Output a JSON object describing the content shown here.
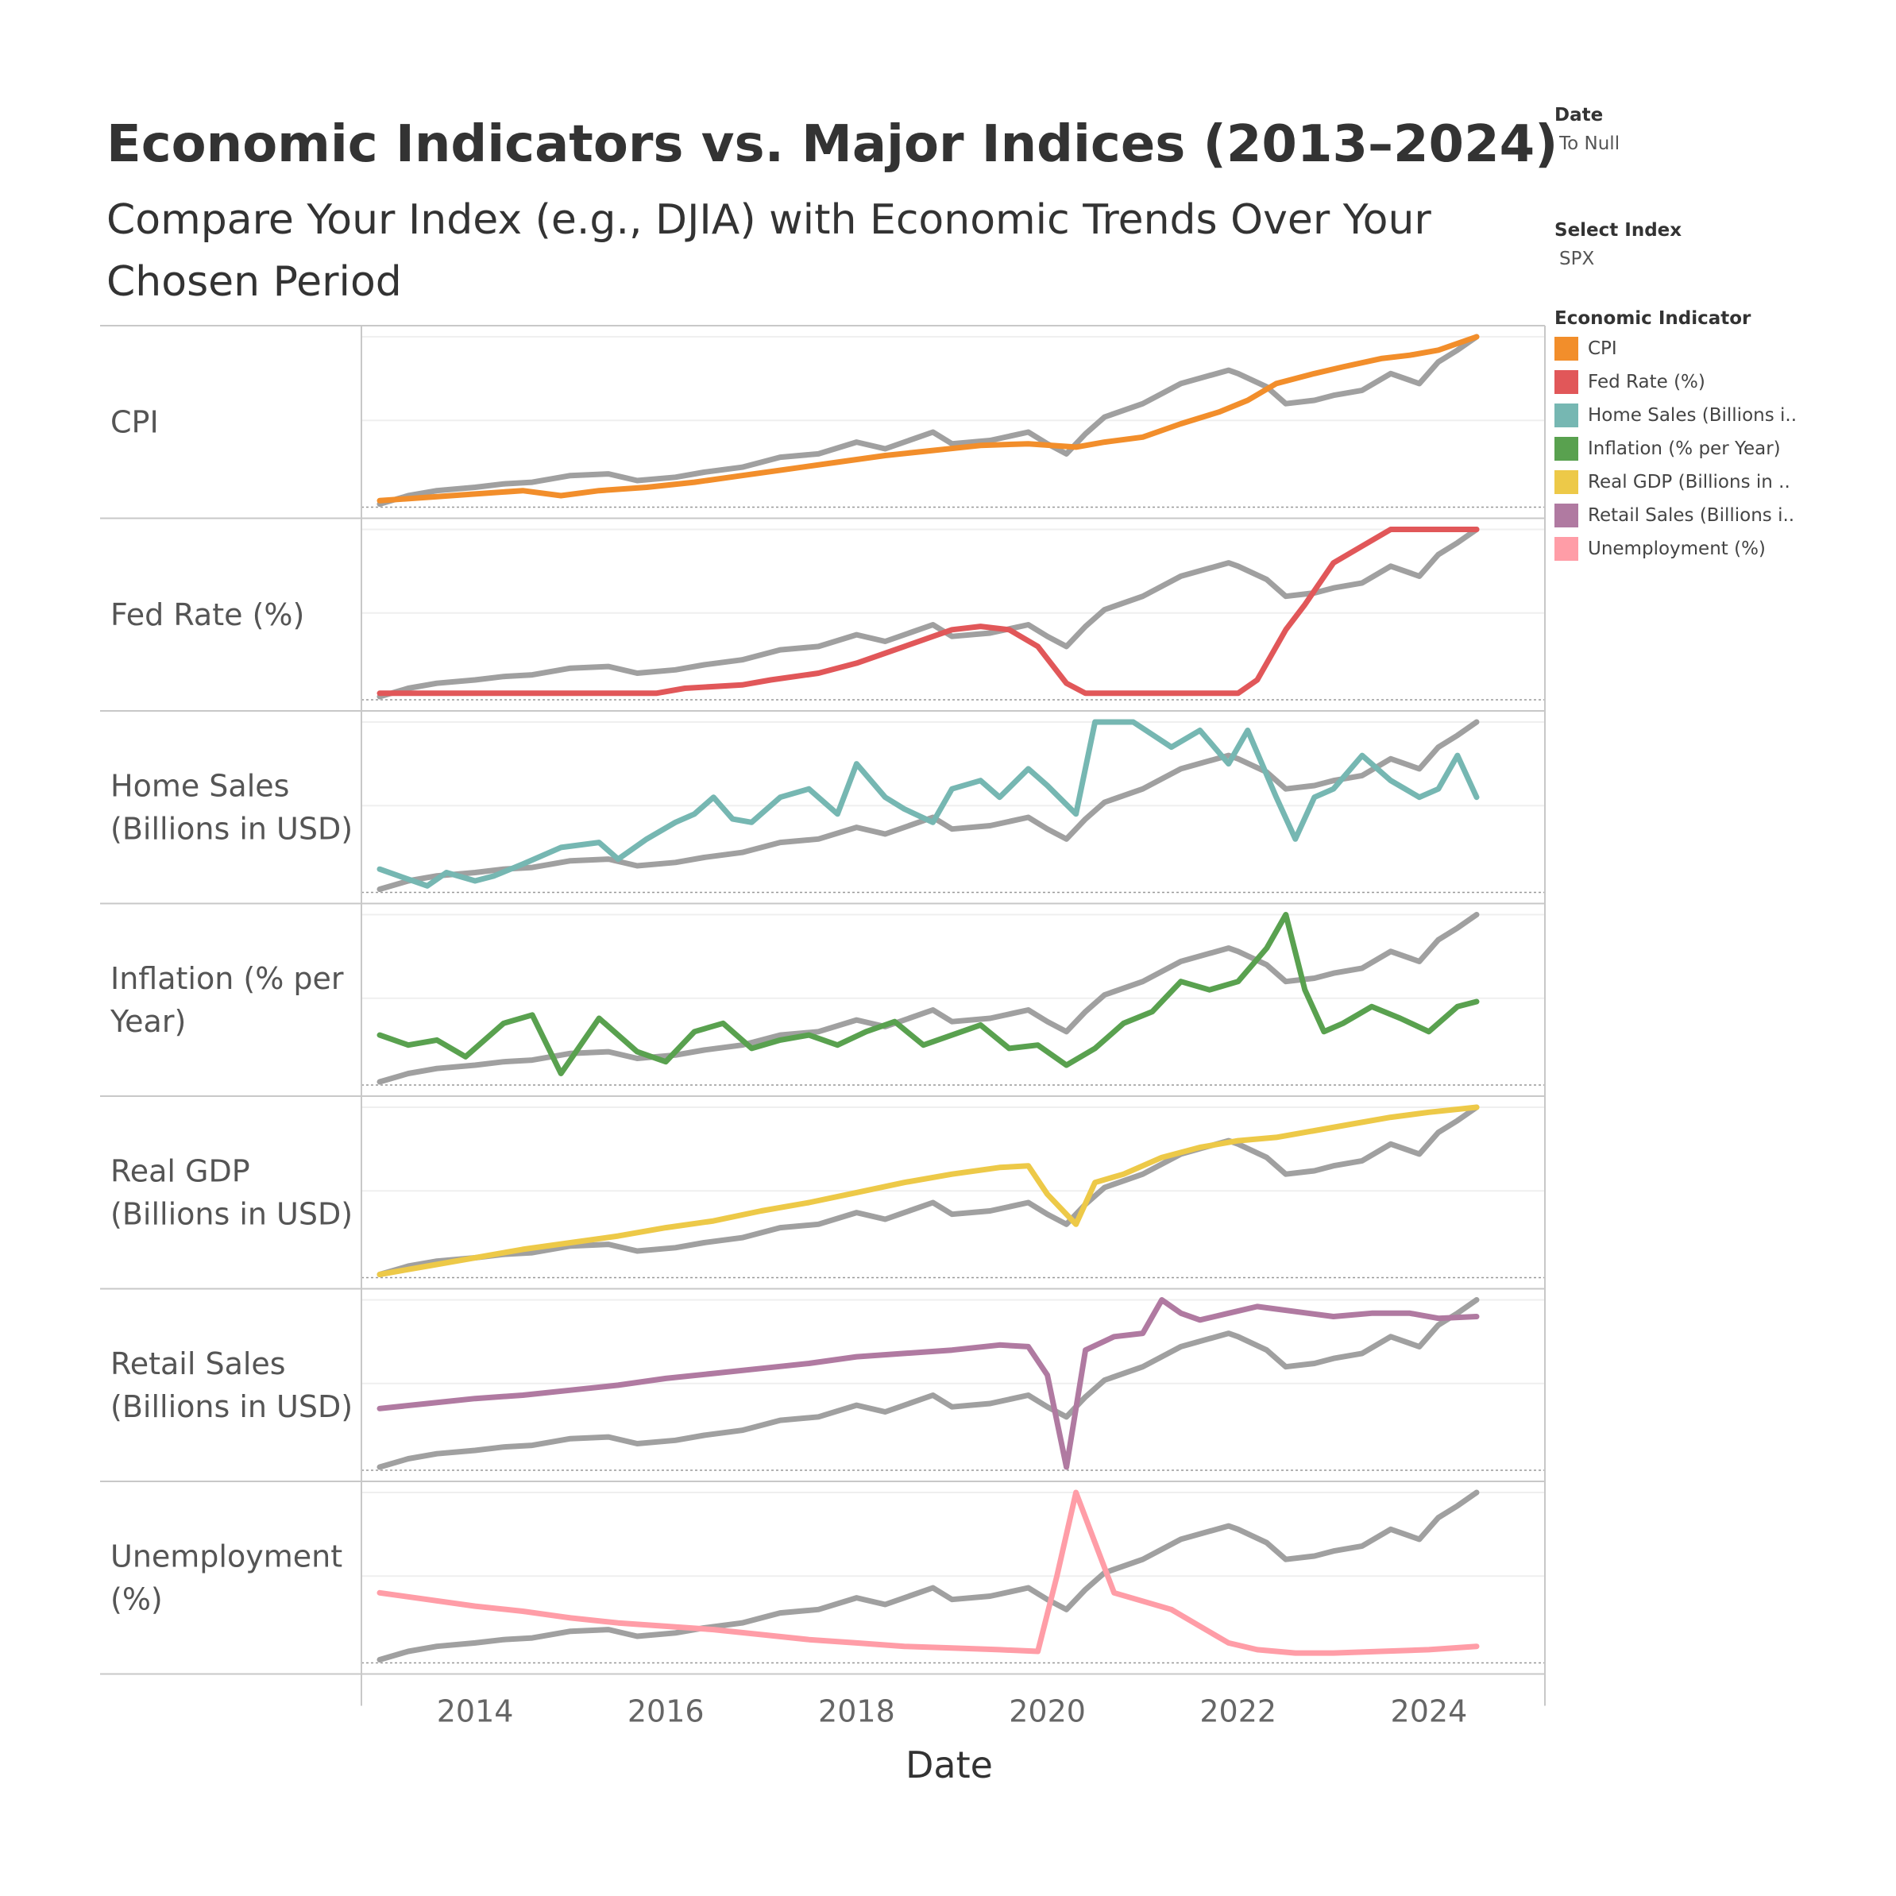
{
  "title": "Economic Indicators vs. Major Indices (2013–2024)",
  "subtitle": "Compare Your Index (e.g., DJIA) with Economic Trends Over Your Chosen Period",
  "filters": {
    "date": {
      "label": "Date",
      "value": "To Null"
    },
    "select_index": {
      "label": "Select Index",
      "value": "SPX"
    }
  },
  "legend": {
    "title": "Economic Indicator",
    "items": [
      {
        "label": "CPI",
        "color": "#F28E2B"
      },
      {
        "label": "Fed Rate (%)",
        "color": "#E15759"
      },
      {
        "label": "Home Sales (Billions i..",
        "color": "#76B7B2"
      },
      {
        "label": "Inflation (% per Year)",
        "color": "#59A14F"
      },
      {
        "label": "Real GDP (Billions in ..",
        "color": "#EDC948"
      },
      {
        "label": "Retail Sales (Billions i..",
        "color": "#B07AA1"
      },
      {
        "label": "Unemployment (%)",
        "color": "#FF9DA7"
      }
    ]
  },
  "chart_data": {
    "type": "line",
    "xlabel": "Date",
    "x_ticks": [
      "2014",
      "2016",
      "2018",
      "2020",
      "2022",
      "2024"
    ],
    "index_color": "#A0A0A0",
    "index_series": {
      "name": "SPX",
      "x": [
        2013.0,
        2013.3,
        2013.6,
        2014.0,
        2014.3,
        2014.6,
        2015.0,
        2015.4,
        2015.7,
        2016.1,
        2016.4,
        2016.8,
        2017.2,
        2017.6,
        2018.0,
        2018.3,
        2018.8,
        2019.0,
        2019.4,
        2019.8,
        2020.0,
        2020.2,
        2020.4,
        2020.6,
        2021.0,
        2021.4,
        2021.9,
        2022.0,
        2022.3,
        2022.5,
        2022.8,
        2023.0,
        2023.3,
        2023.6,
        2023.9,
        2024.1,
        2024.3,
        2024.5
      ],
      "y": [
        0.0,
        0.05,
        0.08,
        0.1,
        0.12,
        0.13,
        0.17,
        0.18,
        0.14,
        0.16,
        0.19,
        0.22,
        0.28,
        0.3,
        0.37,
        0.33,
        0.43,
        0.36,
        0.38,
        0.43,
        0.36,
        0.3,
        0.42,
        0.52,
        0.6,
        0.72,
        0.8,
        0.78,
        0.7,
        0.6,
        0.62,
        0.65,
        0.68,
        0.78,
        0.72,
        0.85,
        0.92,
        1.0
      ]
    },
    "panels": [
      {
        "label": "CPI",
        "color": "#F28E2B",
        "x": [
          2013.0,
          2013.5,
          2014.0,
          2014.5,
          2014.9,
          2015.3,
          2015.8,
          2016.3,
          2016.8,
          2017.3,
          2017.8,
          2018.3,
          2018.8,
          2019.3,
          2019.8,
          2020.3,
          2020.6,
          2021.0,
          2021.4,
          2021.8,
          2022.1,
          2022.4,
          2022.8,
          2023.1,
          2023.5,
          2023.8,
          2024.1,
          2024.5
        ],
        "y": [
          0.02,
          0.04,
          0.06,
          0.08,
          0.05,
          0.08,
          0.1,
          0.13,
          0.17,
          0.21,
          0.25,
          0.29,
          0.32,
          0.35,
          0.36,
          0.34,
          0.37,
          0.4,
          0.48,
          0.55,
          0.62,
          0.72,
          0.78,
          0.82,
          0.87,
          0.89,
          0.92,
          1.0
        ]
      },
      {
        "label": "Fed Rate (%)",
        "color": "#E15759",
        "x": [
          2013.0,
          2014.0,
          2015.0,
          2015.9,
          2016.2,
          2016.8,
          2017.1,
          2017.6,
          2018.0,
          2018.5,
          2019.0,
          2019.3,
          2019.6,
          2019.9,
          2020.2,
          2020.4,
          2021.0,
          2021.5,
          2022.0,
          2022.2,
          2022.5,
          2022.7,
          2023.0,
          2023.3,
          2023.6,
          2024.0,
          2024.5
        ],
        "y": [
          0.02,
          0.02,
          0.02,
          0.02,
          0.05,
          0.07,
          0.1,
          0.14,
          0.2,
          0.3,
          0.4,
          0.42,
          0.4,
          0.3,
          0.08,
          0.02,
          0.02,
          0.02,
          0.02,
          0.1,
          0.4,
          0.55,
          0.8,
          0.9,
          1.0,
          1.0,
          1.0
        ]
      },
      {
        "label": "Home Sales\n(Billions in USD)",
        "color": "#76B7B2",
        "x": [
          2013.0,
          2013.2,
          2013.5,
          2013.7,
          2014.0,
          2014.2,
          2014.5,
          2014.9,
          2015.3,
          2015.5,
          2015.8,
          2016.1,
          2016.3,
          2016.5,
          2016.7,
          2016.9,
          2017.2,
          2017.5,
          2017.8,
          2018.0,
          2018.3,
          2018.5,
          2018.8,
          2019.0,
          2019.3,
          2019.5,
          2019.8,
          2020.0,
          2020.3,
          2020.5,
          2020.9,
          2021.3,
          2021.6,
          2021.9,
          2022.1,
          2022.4,
          2022.6,
          2022.8,
          2023.0,
          2023.3,
          2023.6,
          2023.9,
          2024.1,
          2024.3,
          2024.5
        ],
        "y": [
          0.12,
          0.08,
          0.02,
          0.1,
          0.05,
          0.08,
          0.15,
          0.25,
          0.28,
          0.18,
          0.3,
          0.4,
          0.45,
          0.55,
          0.42,
          0.4,
          0.55,
          0.6,
          0.45,
          0.75,
          0.55,
          0.48,
          0.4,
          0.6,
          0.65,
          0.55,
          0.72,
          0.62,
          0.45,
          1.0,
          1.0,
          0.85,
          0.95,
          0.75,
          0.95,
          0.55,
          0.3,
          0.55,
          0.6,
          0.8,
          0.65,
          0.55,
          0.6,
          0.8,
          0.55
        ]
      },
      {
        "label": "Inflation (% per\nYear)",
        "color": "#59A14F",
        "x": [
          2013.0,
          2013.3,
          2013.6,
          2013.9,
          2014.3,
          2014.6,
          2014.9,
          2015.3,
          2015.7,
          2016.0,
          2016.3,
          2016.6,
          2016.9,
          2017.2,
          2017.5,
          2017.8,
          2018.1,
          2018.4,
          2018.7,
          2019.0,
          2019.3,
          2019.6,
          2019.9,
          2020.2,
          2020.5,
          2020.8,
          2021.1,
          2021.4,
          2021.7,
          2022.0,
          2022.3,
          2022.5,
          2022.7,
          2022.9,
          2023.1,
          2023.4,
          2023.7,
          2024.0,
          2024.3,
          2024.5
        ],
        "y": [
          0.28,
          0.22,
          0.25,
          0.15,
          0.35,
          0.4,
          0.05,
          0.38,
          0.18,
          0.12,
          0.3,
          0.35,
          0.2,
          0.25,
          0.28,
          0.22,
          0.3,
          0.36,
          0.22,
          0.28,
          0.34,
          0.2,
          0.22,
          0.1,
          0.2,
          0.35,
          0.42,
          0.6,
          0.55,
          0.6,
          0.8,
          1.0,
          0.55,
          0.3,
          0.35,
          0.45,
          0.38,
          0.3,
          0.45,
          0.48
        ]
      },
      {
        "label": "Real GDP\n(Billions in USD)",
        "color": "#EDC948",
        "x": [
          2013.0,
          2013.5,
          2014.0,
          2014.5,
          2015.0,
          2015.5,
          2016.0,
          2016.5,
          2017.0,
          2017.5,
          2018.0,
          2018.5,
          2019.0,
          2019.5,
          2019.8,
          2020.0,
          2020.3,
          2020.5,
          2020.8,
          2021.2,
          2021.6,
          2022.0,
          2022.4,
          2022.8,
          2023.2,
          2023.6,
          2024.0,
          2024.5
        ],
        "y": [
          0.0,
          0.05,
          0.1,
          0.15,
          0.19,
          0.23,
          0.28,
          0.32,
          0.38,
          0.43,
          0.49,
          0.55,
          0.6,
          0.64,
          0.65,
          0.48,
          0.3,
          0.55,
          0.6,
          0.7,
          0.76,
          0.8,
          0.82,
          0.86,
          0.9,
          0.94,
          0.97,
          1.0
        ]
      },
      {
        "label": "Retail Sales\n(Billions in USD)",
        "color": "#B07AA1",
        "x": [
          2013.0,
          2013.5,
          2014.0,
          2014.5,
          2015.0,
          2015.5,
          2016.0,
          2016.5,
          2017.0,
          2017.5,
          2018.0,
          2018.5,
          2019.0,
          2019.5,
          2019.8,
          2020.0,
          2020.2,
          2020.4,
          2020.7,
          2021.0,
          2021.2,
          2021.4,
          2021.6,
          2021.9,
          2022.2,
          2022.6,
          2023.0,
          2023.4,
          2023.8,
          2024.1,
          2024.5
        ],
        "y": [
          0.35,
          0.38,
          0.41,
          0.43,
          0.46,
          0.49,
          0.53,
          0.56,
          0.59,
          0.62,
          0.66,
          0.68,
          0.7,
          0.73,
          0.72,
          0.55,
          0.0,
          0.7,
          0.78,
          0.8,
          1.0,
          0.92,
          0.88,
          0.92,
          0.96,
          0.93,
          0.9,
          0.92,
          0.92,
          0.89,
          0.9
        ]
      },
      {
        "label": "Unemployment\n(%)",
        "color": "#FF9DA7",
        "x": [
          2013.0,
          2013.5,
          2014.0,
          2014.5,
          2015.0,
          2015.5,
          2016.0,
          2016.5,
          2017.0,
          2017.5,
          2018.0,
          2018.5,
          2019.0,
          2019.5,
          2019.9,
          2020.1,
          2020.3,
          2020.5,
          2020.7,
          2021.0,
          2021.3,
          2021.6,
          2021.9,
          2022.2,
          2022.6,
          2023.0,
          2023.5,
          2024.0,
          2024.5
        ],
        "y": [
          0.4,
          0.36,
          0.32,
          0.29,
          0.25,
          0.22,
          0.2,
          0.18,
          0.15,
          0.12,
          0.1,
          0.08,
          0.07,
          0.06,
          0.05,
          0.5,
          1.0,
          0.7,
          0.4,
          0.35,
          0.3,
          0.2,
          0.1,
          0.06,
          0.04,
          0.04,
          0.05,
          0.06,
          0.08
        ]
      }
    ]
  }
}
